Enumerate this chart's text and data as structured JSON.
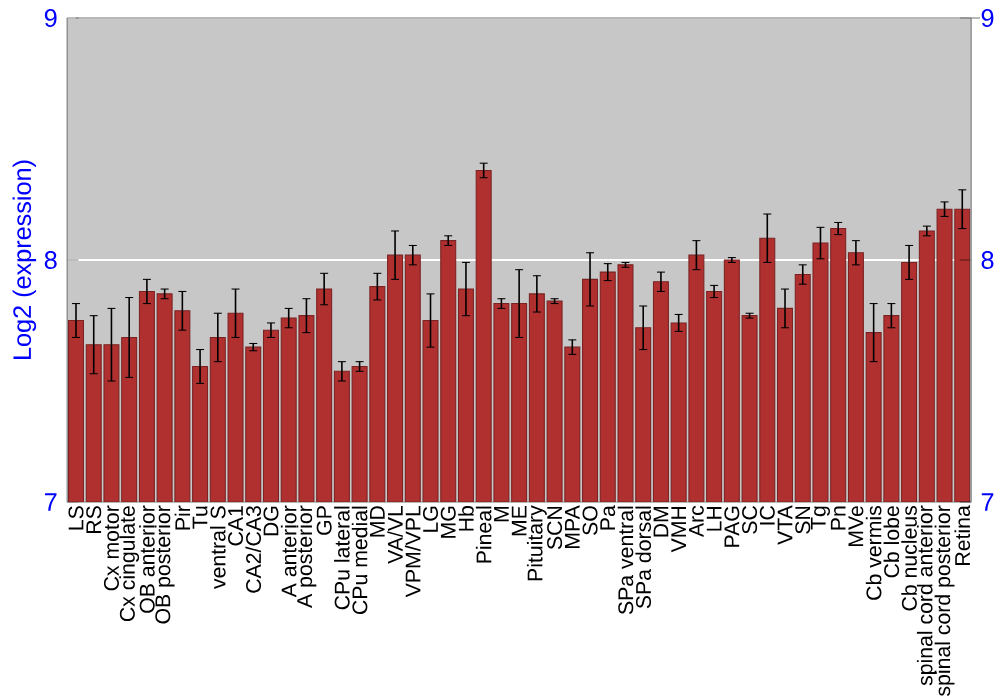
{
  "chart_data": {
    "type": "bar",
    "ylabel": "Log2 (expression)",
    "categories": [
      "LS",
      "RS",
      "Cx motor",
      "Cx cingulate",
      "OB anterior",
      "OB posterior",
      "Pir",
      "Tu",
      "ventral S",
      "CA1",
      "CA2/CA3",
      "DG",
      "A anterior",
      "A posterior",
      "GP",
      "CPu lateral",
      "CPu medial",
      "MD",
      "VA/VL",
      "VPM/VPL",
      "LG",
      "MG",
      "Hb",
      "Pineal",
      "M",
      "ME",
      "Pituitary",
      "SCN",
      "MPA",
      "SO",
      "Pa",
      "SPa ventral",
      "SPa dorsal",
      "DM",
      "VMH",
      "Arc",
      "LH",
      "PAG",
      "SC",
      "IC",
      "VTA",
      "SN",
      "Tg",
      "Pn",
      "MVe",
      "Cb vermis",
      "Cb lobe",
      "Cb nucleus",
      "spinal cord anterior",
      "spinal cord posterior",
      "Retina"
    ],
    "values": [
      7.75,
      7.65,
      7.65,
      7.68,
      7.87,
      7.86,
      7.79,
      7.56,
      7.68,
      7.78,
      7.64,
      7.71,
      7.76,
      7.77,
      7.88,
      7.54,
      7.56,
      7.89,
      8.02,
      8.02,
      7.75,
      8.08,
      7.88,
      8.37,
      7.82,
      7.82,
      7.86,
      7.83,
      7.64,
      7.92,
      7.95,
      7.98,
      7.72,
      7.91,
      7.74,
      8.02,
      7.87,
      8.0,
      7.77,
      8.09,
      7.8,
      7.94,
      8.07,
      8.13,
      8.03,
      7.7,
      7.77,
      7.99,
      8.12,
      8.21,
      8.21
    ],
    "errors": [
      0.07,
      0.12,
      0.15,
      0.165,
      0.05,
      0.02,
      0.08,
      0.07,
      0.1,
      0.1,
      0.015,
      0.03,
      0.04,
      0.07,
      0.065,
      0.04,
      0.02,
      0.055,
      0.1,
      0.04,
      0.11,
      0.02,
      0.11,
      0.03,
      0.02,
      0.14,
      0.075,
      0.01,
      0.03,
      0.11,
      0.035,
      0.01,
      0.09,
      0.04,
      0.035,
      0.06,
      0.025,
      0.01,
      0.01,
      0.1,
      0.08,
      0.04,
      0.065,
      0.025,
      0.05,
      0.12,
      0.05,
      0.07,
      0.02,
      0.03,
      0.08
    ],
    "color": "#b03030",
    "ylim": [
      7,
      9
    ],
    "yticks": [
      7,
      8,
      9
    ],
    "y2lim": [
      7,
      9
    ],
    "y2ticks": [
      7,
      8,
      9
    ],
    "grid": "y"
  }
}
